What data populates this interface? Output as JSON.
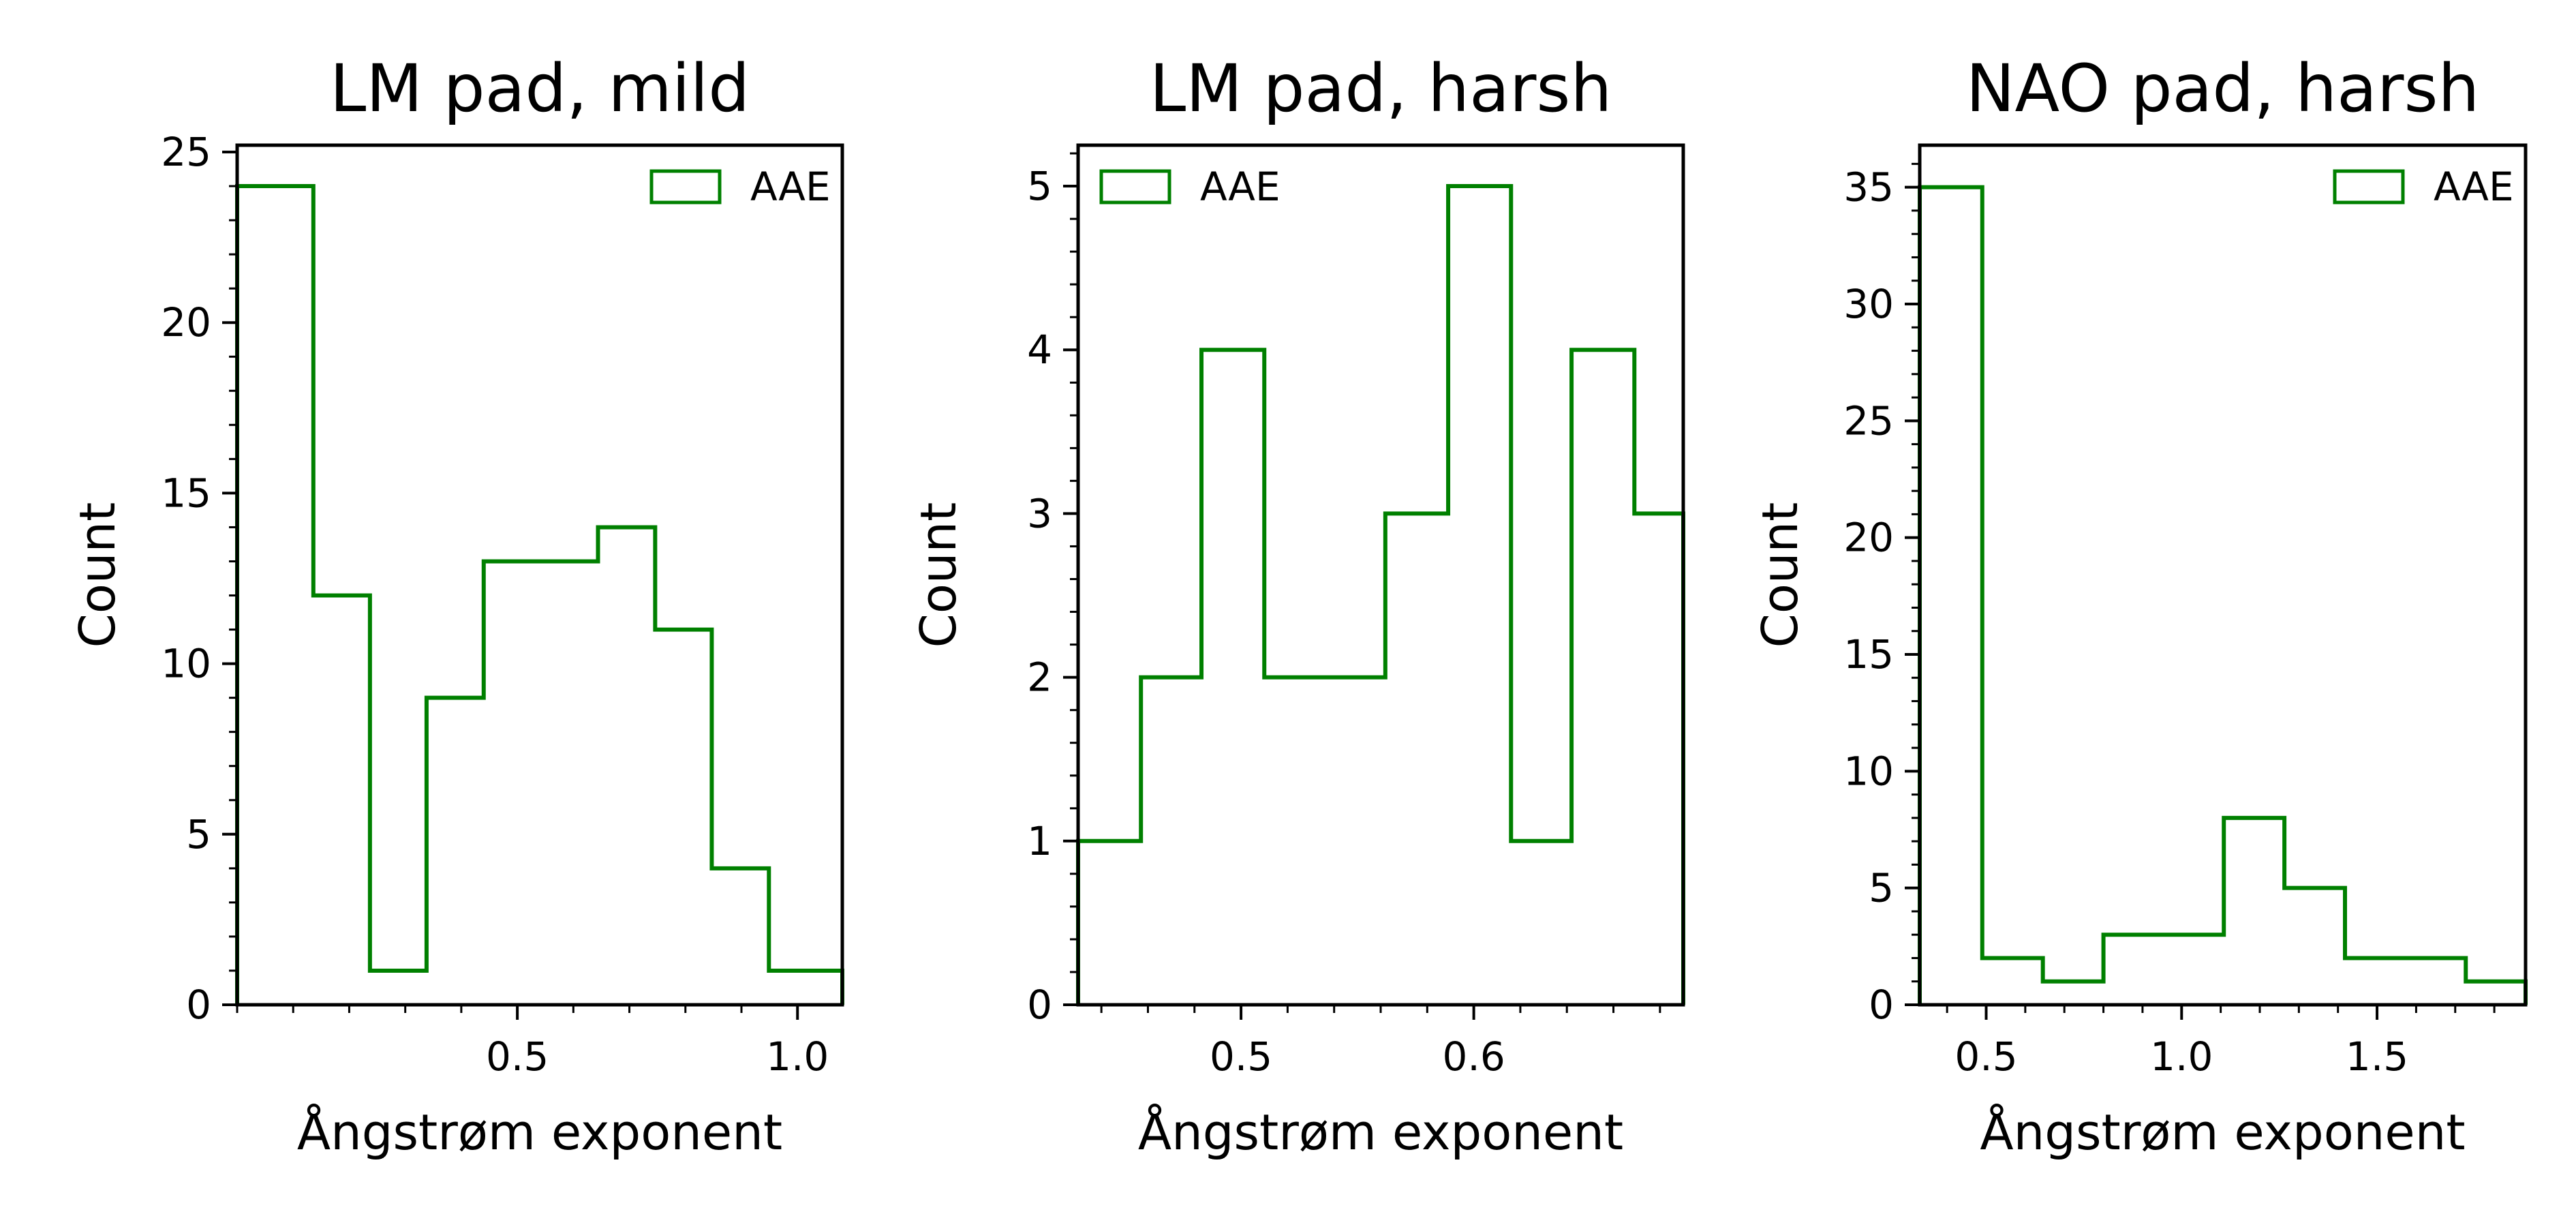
{
  "chart_data": [
    {
      "type": "bar",
      "title": "LM pad, mild",
      "xlabel": "Ångstrøm exponent",
      "ylabel": "Count",
      "xlim": [
        0.0,
        1.08
      ],
      "ylim": [
        0,
        25.2
      ],
      "bin_edges": [
        0.0,
        0.136,
        0.237,
        0.338,
        0.44,
        0.644,
        0.746,
        0.847,
        0.949,
        1.08
      ],
      "values": [
        24,
        12,
        1,
        9,
        13,
        14,
        11,
        4,
        1
      ],
      "xticks": [
        "0.5",
        "1.0"
      ],
      "yticks": [
        "0",
        "5",
        "10",
        "15",
        "20",
        "25"
      ],
      "legend": {
        "label": "AAE",
        "placement": "upper right"
      },
      "color": "#008000"
    },
    {
      "type": "bar",
      "title": "LM pad, harsh",
      "xlabel": "Ångstrøm exponent",
      "ylabel": "Count",
      "xlim": [
        0.43,
        0.69
      ],
      "ylim": [
        0,
        5.25
      ],
      "bin_edges": [
        0.43,
        0.457,
        0.483,
        0.51,
        0.562,
        0.589,
        0.616,
        0.642,
        0.669,
        0.69
      ],
      "values": [
        1,
        2,
        4,
        2,
        3,
        5,
        1,
        4,
        3
      ],
      "xticks": [
        "0.5",
        "0.6"
      ],
      "yticks": [
        "0",
        "1",
        "2",
        "3",
        "4",
        "5"
      ],
      "legend": {
        "label": "AAE",
        "placement": "upper left"
      },
      "color": "#008000"
    },
    {
      "type": "bar",
      "title": "NAO pad, harsh",
      "xlabel": "Ångstrøm exponent",
      "ylabel": "Count",
      "xlim": [
        0.33,
        1.88
      ],
      "ylim": [
        0,
        36.8
      ],
      "bin_edges": [
        0.33,
        0.49,
        0.645,
        0.8,
        1.108,
        1.263,
        1.418,
        1.727,
        1.88
      ],
      "values": [
        35,
        2,
        1,
        3,
        8,
        5,
        2,
        1
      ],
      "xticks": [
        "0.5",
        "1.0",
        "1.5"
      ],
      "yticks": [
        "0",
        "5",
        "10",
        "15",
        "20",
        "25",
        "30",
        "35"
      ],
      "legend": {
        "label": "AAE",
        "placement": "upper right"
      },
      "color": "#008000"
    }
  ]
}
